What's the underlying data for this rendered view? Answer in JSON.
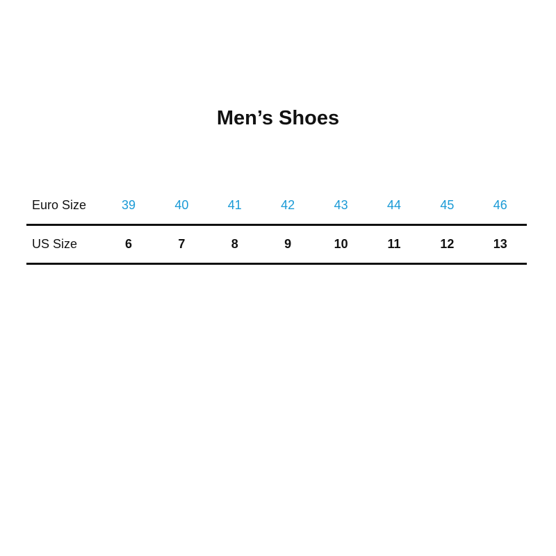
{
  "title": "Men’s Shoes",
  "table": {
    "euro_label": "Euro Size",
    "us_label": "US Size",
    "euro_sizes": [
      "39",
      "40",
      "41",
      "42",
      "43",
      "44",
      "45",
      "46"
    ],
    "us_sizes": [
      "6",
      "7",
      "8",
      "9",
      "10",
      "11",
      "12",
      "13"
    ]
  },
  "colors": {
    "euro_accent": "#1a9ad6",
    "text": "#111111"
  }
}
